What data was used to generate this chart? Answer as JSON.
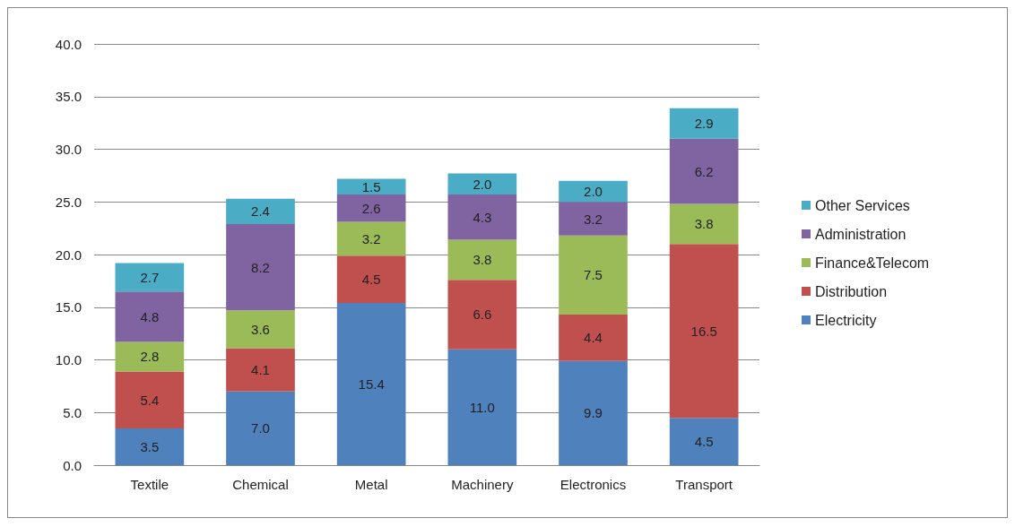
{
  "chart_data": {
    "type": "bar",
    "stacked": true,
    "categories": [
      "Textile",
      "Chemical",
      "Metal",
      "Machinery",
      "Electronics",
      "Transport"
    ],
    "series": [
      {
        "name": "Electricity",
        "color": "#4f81bd",
        "values": [
          3.5,
          7.0,
          15.4,
          11.0,
          9.9,
          4.5
        ],
        "value_labels": [
          "3.5",
          "7.0",
          "15.4",
          "11.0",
          "9.9",
          "4.5"
        ]
      },
      {
        "name": "Distribution",
        "color": "#c0504d",
        "values": [
          5.4,
          4.1,
          4.5,
          6.6,
          4.4,
          16.5
        ],
        "value_labels": [
          "5.4",
          "4.1",
          "4.5",
          "6.6",
          "4.4",
          "16.5"
        ]
      },
      {
        "name": "Finance&Telecom",
        "color": "#9bbb59",
        "values": [
          2.8,
          3.6,
          3.2,
          3.8,
          7.5,
          3.8
        ],
        "value_labels": [
          "2.8",
          "3.6",
          "3.2",
          "3.8",
          "7.5",
          "3.8"
        ]
      },
      {
        "name": "Administration",
        "color": "#8064a2",
        "values": [
          4.8,
          8.2,
          2.6,
          4.3,
          3.2,
          6.2
        ],
        "value_labels": [
          "4.8",
          "8.2",
          "2.6",
          "4.3",
          "3.2",
          "6.2"
        ]
      },
      {
        "name": "Other Services",
        "color": "#4bacc6",
        "values": [
          2.7,
          2.4,
          1.5,
          2.0,
          2.0,
          2.9
        ],
        "value_labels": [
          "2.7",
          "2.4",
          "1.5",
          "2.0",
          "2.0",
          "2.9"
        ]
      }
    ],
    "ylim": [
      0,
      40
    ],
    "yticks": [
      {
        "value": 0,
        "label": "0.0"
      },
      {
        "value": 5,
        "label": "5.0"
      },
      {
        "value": 10,
        "label": "10.0"
      },
      {
        "value": 15,
        "label": "15.0"
      },
      {
        "value": 20,
        "label": "20.0"
      },
      {
        "value": 25,
        "label": "25.0"
      },
      {
        "value": 30,
        "label": "30.0"
      },
      {
        "value": 35,
        "label": "35.0"
      },
      {
        "value": 40,
        "label": "40.0"
      }
    ],
    "grid": "y",
    "legend": "right"
  }
}
